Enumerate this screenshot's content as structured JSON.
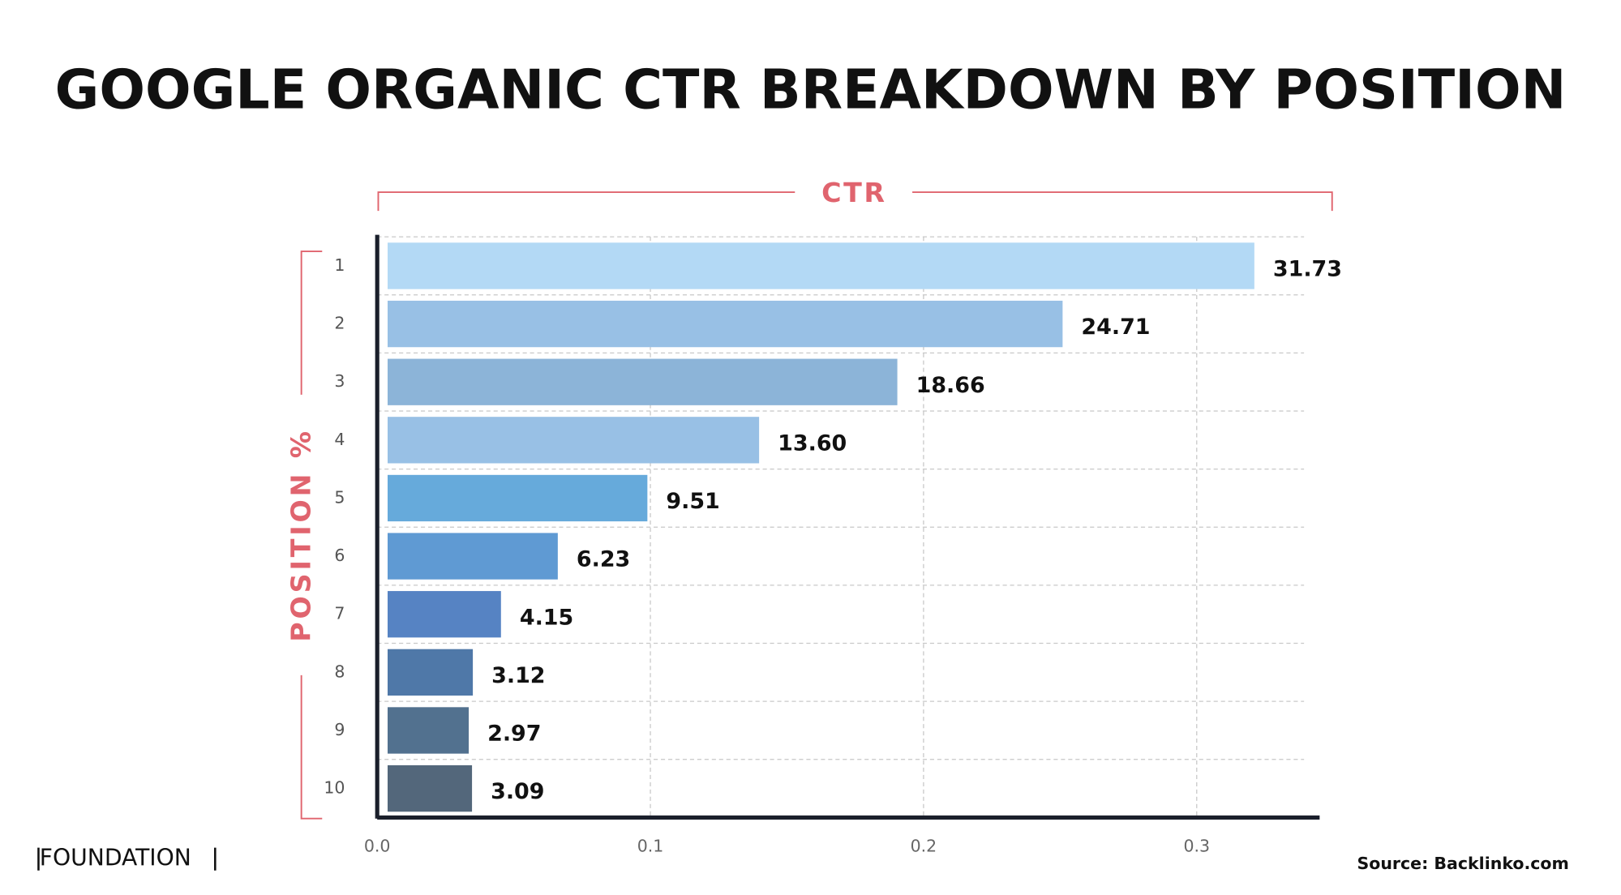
{
  "chart_data": {
    "type": "hbar",
    "title": "GOOGLE ORGANIC CTR BREAKDOWN BY POSITION",
    "x_label": "CTR",
    "y_label": "POSITION %",
    "categories": [
      "1",
      "2",
      "3",
      "4",
      "5",
      "6",
      "7",
      "8",
      "9",
      "10"
    ],
    "values": [
      0.3173,
      0.2471,
      0.1866,
      0.136,
      0.0951,
      0.0623,
      0.0415,
      0.0312,
      0.0297,
      0.0309
    ],
    "value_labels": [
      "31.73",
      "24.71",
      "18.66",
      "13.60",
      "9.51",
      "6.23",
      "4.15",
      "3.12",
      "2.97",
      "3.09"
    ],
    "colors": [
      "#b3d9f5",
      "#98c0e5",
      "#8cb4d8",
      "#98c0e5",
      "#66aadb",
      "#5f9ad3",
      "#5683c3",
      "#4f78a8",
      "#52718f",
      "#53677b"
    ],
    "xlim": [
      0,
      0.345
    ],
    "xticks": [
      {
        "value": 0,
        "label": "0.0"
      },
      0.1,
      0.2,
      0.3
    ],
    "grid": true,
    "logo": "FOUNDATION",
    "source": "Source: Backlinko.com"
  }
}
